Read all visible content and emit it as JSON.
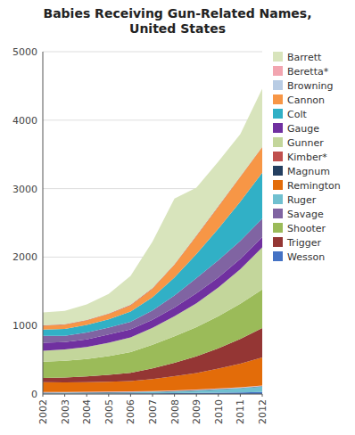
{
  "chart_data": {
    "type": "area",
    "stacked": true,
    "title": "Babies Receiving Gun-Related Names,\nUnited States",
    "x": [
      2002,
      2003,
      2004,
      2005,
      2006,
      2007,
      2008,
      2009,
      2010,
      2011,
      2012
    ],
    "series": [
      {
        "name": "Wesson",
        "color": "#4472c4",
        "values": [
          5,
          6,
          7,
          8,
          9,
          10,
          12,
          15,
          18,
          22,
          28
        ]
      },
      {
        "name": "Ruger",
        "color": "#70c0d0",
        "values": [
          8,
          9,
          10,
          12,
          14,
          18,
          25,
          35,
          48,
          62,
          80
        ]
      },
      {
        "name": "Magnum",
        "color": "#243f60",
        "values": [
          5,
          5,
          5,
          5,
          5,
          5,
          5,
          5,
          5,
          5,
          5
        ]
      },
      {
        "name": "Browning",
        "color": "#b8cce4",
        "values": [
          5,
          5,
          5,
          5,
          5,
          5,
          5,
          5,
          5,
          5,
          5
        ]
      },
      {
        "name": "Beretta*",
        "color": "#f2a5b0",
        "values": [
          5,
          5,
          5,
          5,
          5,
          5,
          5,
          5,
          5,
          5,
          5
        ]
      },
      {
        "name": "Remington",
        "color": "#e36c09",
        "values": [
          145,
          140,
          140,
          145,
          150,
          175,
          210,
          240,
          290,
          345,
          410
        ]
      },
      {
        "name": "Trigger",
        "color": "#943634",
        "values": [
          60,
          70,
          85,
          100,
          120,
          155,
          195,
          245,
          295,
          360,
          430
        ]
      },
      {
        "name": "Shooter",
        "color": "#9bbb59",
        "values": [
          240,
          245,
          255,
          275,
          305,
          345,
          385,
          425,
          470,
          515,
          565
        ]
      },
      {
        "name": "Gunner",
        "color": "#c3d69b",
        "values": [
          160,
          165,
          175,
          195,
          215,
          250,
          295,
          350,
          420,
          505,
          615
        ]
      },
      {
        "name": "Gauge",
        "color": "#7030a0",
        "values": [
          115,
          108,
          112,
          118,
          115,
          115,
          125,
          145,
          148,
          148,
          148
        ]
      },
      {
        "name": "Savage",
        "color": "#8064a2",
        "values": [
          100,
          92,
          98,
          102,
          112,
          138,
          178,
          222,
          250,
          265,
          270
        ]
      },
      {
        "name": "Colt",
        "color": "#31b0c6",
        "values": [
          92,
          102,
          112,
          122,
          148,
          192,
          262,
          352,
          462,
          572,
          672
        ]
      },
      {
        "name": "Cannon",
        "color": "#f79646",
        "values": [
          55,
          60,
          65,
          75,
          90,
          125,
          185,
          262,
          320,
          360,
          370
        ]
      },
      {
        "name": "Kimber*",
        "color": "#c0504d",
        "values": [
          8,
          8,
          8,
          8,
          8,
          8,
          8,
          8,
          8,
          8,
          8
        ]
      },
      {
        "name": "Barrett",
        "color": "#d8e4bc",
        "values": [
          190,
          195,
          225,
          285,
          425,
          680,
          960,
          700,
          650,
          620,
          850
        ]
      }
    ],
    "xlim": [
      2002,
      2012
    ],
    "xticks": [
      2002,
      2003,
      2004,
      2005,
      2006,
      2007,
      2008,
      2009,
      2010,
      2011,
      2012
    ],
    "ylim": [
      0,
      5000
    ],
    "yticks": [
      0,
      1000,
      2000,
      3000,
      4000,
      5000
    ],
    "grid": true,
    "legend": "right"
  }
}
